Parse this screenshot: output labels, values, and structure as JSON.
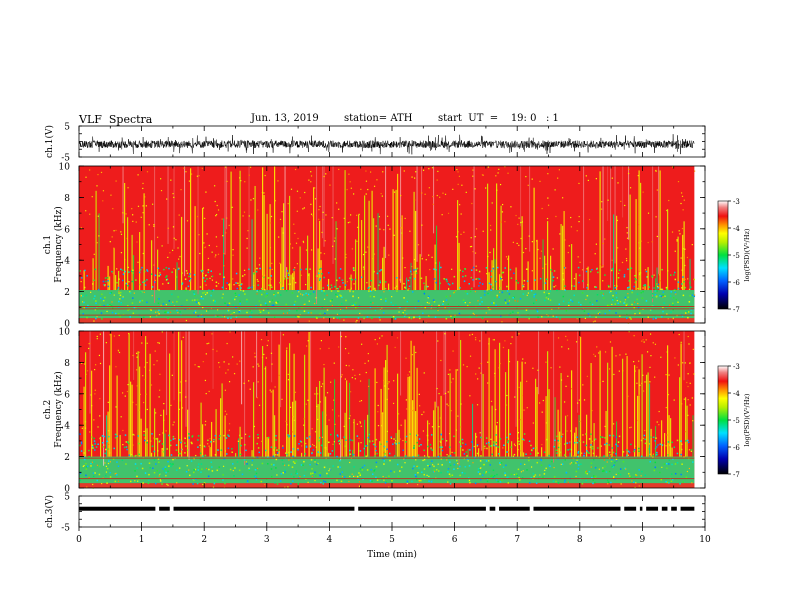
{
  "header": {
    "title": "VLF  Spectra",
    "date": "Jun. 13, 2019",
    "station": "station= ATH",
    "start": "start  UT  =    19: 0   : 1"
  },
  "chart_data": [
    {
      "type": "line",
      "name": "ch1-waveform",
      "ylabel": "ch.1(V)",
      "ylim": [
        -5,
        5
      ],
      "yticks": [
        "5",
        "-5"
      ],
      "xlim": [
        0,
        10
      ],
      "baseline": -0.9,
      "amplitude": 1.2
    },
    {
      "type": "heatmap",
      "name": "ch1-spectrogram",
      "ylabel": "ch.1\nFrequency (kHz)",
      "ylim": [
        0,
        10
      ],
      "yticks": [
        "10",
        "8",
        "6",
        "4",
        "2",
        "0"
      ],
      "xlim": [
        0,
        9.83
      ],
      "colorbar": {
        "label": "log(PSD)(V²/Hz)",
        "ticks": [
          "-3",
          "-4",
          "-5",
          "-6",
          "-7"
        ],
        "range": [
          -7,
          -3
        ]
      },
      "low_band_khz": [
        0.3,
        2.1
      ],
      "hum_lines_khz": [
        0.5,
        0.9,
        1.05
      ]
    },
    {
      "type": "heatmap",
      "name": "ch2-spectrogram",
      "ylabel": "ch.2\nFrequency (kHz)",
      "ylim": [
        0,
        10
      ],
      "yticks": [
        "10",
        "8",
        "6",
        "4",
        "2",
        "0"
      ],
      "xlim": [
        0,
        9.83
      ],
      "colorbar": {
        "label": "log(PSD)(V²/Hz)",
        "ticks": [
          "-3",
          "-4",
          "-5",
          "-6",
          "-7"
        ],
        "range": [
          -7,
          -3
        ]
      },
      "low_band_khz": [
        0.3,
        2.0
      ],
      "hum_lines_khz": [
        0.6,
        1.9
      ]
    },
    {
      "type": "line",
      "name": "ch3-waveform",
      "ylabel": "ch.3(V)",
      "ylim": [
        -5,
        5
      ],
      "yticks": [
        "5",
        "-5"
      ],
      "xlim": [
        0,
        10
      ],
      "baseline": 0.9,
      "pulse_gaps_min": [
        1.22,
        1.45,
        4.4,
        6.5,
        6.65,
        7.2,
        8.65,
        8.9,
        9.0,
        9.25,
        9.4,
        9.55
      ]
    }
  ],
  "x_axis": {
    "label": "Time  (min)",
    "ticks": [
      "0",
      "1",
      "2",
      "3",
      "4",
      "5",
      "6",
      "7",
      "8",
      "9",
      "10"
    ],
    "range": [
      0,
      10
    ]
  }
}
